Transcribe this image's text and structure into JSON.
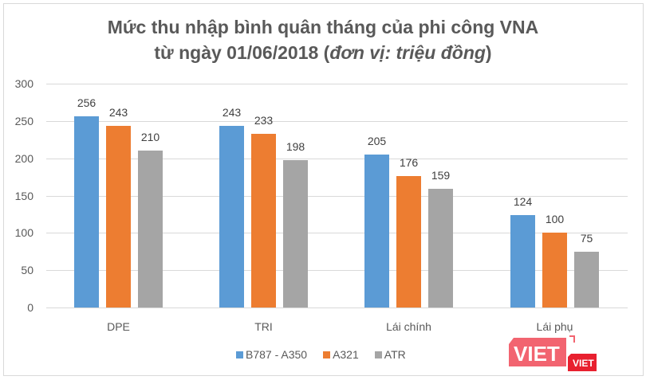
{
  "title": {
    "line1": "Mức thu nhập bình quân tháng của phi công VNA",
    "line2_prefix": "từ ngày 01/06/2018 (",
    "line2_italic": "đơn vị: triệu đồng",
    "line2_suffix": ")"
  },
  "y_ticks": [
    "300",
    "250",
    "200",
    "150",
    "100",
    "50",
    "0"
  ],
  "legend": [
    {
      "label": "B787 - A350",
      "color": "#5b9bd5"
    },
    {
      "label": "A321",
      "color": "#ed7d31"
    },
    {
      "label": "ATR",
      "color": "#a5a5a5"
    }
  ],
  "logo": {
    "main": "VIET",
    "small": "VIET"
  },
  "chart_data": {
    "type": "bar",
    "title": "Mức thu nhập bình quân tháng của phi công VNA từ ngày 01/06/2018 (đơn vị: triệu đồng)",
    "categories": [
      "DPE",
      "TRI",
      "Lái chính",
      "Lái phụ"
    ],
    "series": [
      {
        "name": "B787 - A350",
        "color": "#5b9bd5",
        "values": [
          256,
          243,
          205,
          124
        ]
      },
      {
        "name": "A321",
        "color": "#ed7d31",
        "values": [
          243,
          233,
          176,
          100
        ]
      },
      {
        "name": "ATR",
        "color": "#a5a5a5",
        "values": [
          210,
          198,
          159,
          75
        ]
      }
    ],
    "xlabel": "",
    "ylabel": "",
    "ylim": [
      0,
      300
    ],
    "yticks": [
      0,
      50,
      100,
      150,
      200,
      250,
      300
    ],
    "grid": true,
    "legend_position": "bottom"
  }
}
